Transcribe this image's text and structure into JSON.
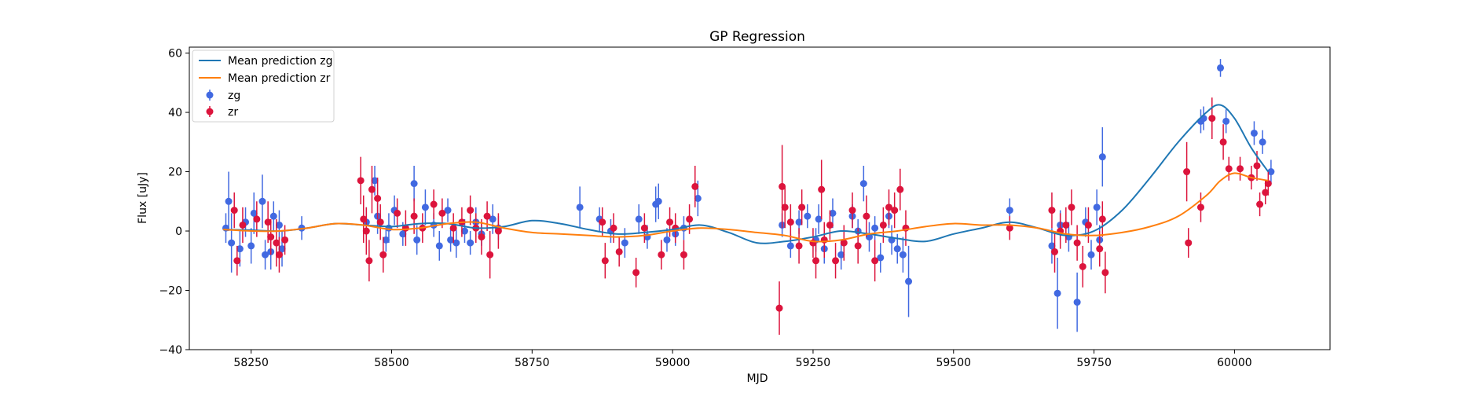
{
  "chart_data": {
    "type": "scatter",
    "title": "GP Regression",
    "xlabel": "MJD",
    "ylabel": "Flux [uJy]",
    "xlim": [
      58140,
      60170
    ],
    "ylim": [
      -40,
      62
    ],
    "xticks": [
      58250,
      58500,
      58750,
      59000,
      59250,
      59500,
      59750,
      60000
    ],
    "yticks": [
      -40,
      -20,
      0,
      20,
      40,
      60
    ],
    "legend_position": "top-left",
    "grid": false,
    "series": [
      {
        "name": "Mean prediction zg",
        "kind": "line",
        "color": "#1f77b4",
        "x": [
          58200,
          58250,
          58300,
          58350,
          58400,
          58450,
          58500,
          58550,
          58600,
          58650,
          58700,
          58750,
          58800,
          58850,
          58900,
          58950,
          59000,
          59050,
          59100,
          59150,
          59200,
          59250,
          59300,
          59350,
          59400,
          59450,
          59500,
          59550,
          59600,
          59650,
          59700,
          59750,
          59800,
          59850,
          59900,
          59950,
          59975,
          60000,
          60030,
          60060
        ],
        "y": [
          0.5,
          0.3,
          0.0,
          1.0,
          2.5,
          2.0,
          1.5,
          2.5,
          2.5,
          1.0,
          1.5,
          3.5,
          2.5,
          0.5,
          -1.0,
          -0.5,
          0.5,
          2.0,
          -0.5,
          -4.0,
          -3.5,
          -2.0,
          0.0,
          -1.0,
          -2.5,
          -3.5,
          -1.0,
          1.0,
          3.0,
          1.0,
          -1.5,
          0.0,
          7.0,
          18.0,
          30.0,
          40.0,
          42.5,
          38.0,
          28.0,
          20.0
        ]
      },
      {
        "name": "Mean prediction zr",
        "kind": "line",
        "color": "#ff7f0e",
        "x": [
          58200,
          58250,
          58300,
          58350,
          58400,
          58450,
          58500,
          58550,
          58600,
          58650,
          58700,
          58750,
          58800,
          58850,
          58900,
          58950,
          59000,
          59050,
          59100,
          59150,
          59200,
          59250,
          59300,
          59350,
          59400,
          59450,
          59500,
          59550,
          59600,
          59650,
          59700,
          59750,
          59800,
          59850,
          59900,
          59950,
          59975,
          60000,
          60030,
          60060
        ],
        "y": [
          0.5,
          0.0,
          0.0,
          1.0,
          2.5,
          2.0,
          0.5,
          1.0,
          2.5,
          3.0,
          1.0,
          -0.5,
          -1.0,
          -1.5,
          -2.0,
          -1.5,
          0.0,
          1.0,
          0.5,
          -0.5,
          -1.5,
          -3.5,
          -3.0,
          -1.0,
          0.0,
          1.5,
          2.5,
          2.0,
          2.0,
          1.0,
          -1.0,
          -1.5,
          -0.5,
          1.5,
          5.0,
          12.0,
          17.0,
          19.5,
          18.0,
          17.0
        ]
      },
      {
        "name": "zg",
        "kind": "errorbar",
        "color": "#4169e1",
        "points": [
          [
            58205,
            1,
            5
          ],
          [
            58210,
            10,
            10
          ],
          [
            58215,
            -4,
            10
          ],
          [
            58230,
            -6,
            6
          ],
          [
            58240,
            3,
            5
          ],
          [
            58250,
            -5,
            6
          ],
          [
            58255,
            6,
            7
          ],
          [
            58270,
            10,
            9
          ],
          [
            58275,
            -8,
            5
          ],
          [
            58285,
            -7,
            6
          ],
          [
            58290,
            5,
            5
          ],
          [
            58300,
            2,
            5
          ],
          [
            58305,
            -6,
            6
          ],
          [
            58340,
            1,
            4
          ],
          [
            58455,
            3,
            5
          ],
          [
            58470,
            17,
            5
          ],
          [
            58475,
            5,
            6
          ],
          [
            58490,
            -3,
            4
          ],
          [
            58495,
            1,
            5
          ],
          [
            58505,
            7,
            5
          ],
          [
            58520,
            -1,
            4
          ],
          [
            58540,
            16,
            6
          ],
          [
            58545,
            -3,
            5
          ],
          [
            58560,
            8,
            6
          ],
          [
            58575,
            2,
            4
          ],
          [
            58585,
            -5,
            5
          ],
          [
            58600,
            7,
            4
          ],
          [
            58605,
            -3,
            4
          ],
          [
            58615,
            -4,
            5
          ],
          [
            58630,
            0,
            4
          ],
          [
            58640,
            -4,
            4
          ],
          [
            58650,
            3,
            5
          ],
          [
            58660,
            -1,
            4
          ],
          [
            58680,
            4,
            5
          ],
          [
            58690,
            1,
            4
          ],
          [
            58835,
            8,
            7
          ],
          [
            58870,
            4,
            4
          ],
          [
            58890,
            0,
            4
          ],
          [
            58915,
            -4,
            5
          ],
          [
            58940,
            4,
            5
          ],
          [
            58955,
            -2,
            4
          ],
          [
            58970,
            9,
            6
          ],
          [
            58975,
            10,
            6
          ],
          [
            58990,
            -3,
            4
          ],
          [
            59005,
            -1,
            4
          ],
          [
            59020,
            1,
            4
          ],
          [
            59045,
            11,
            6
          ],
          [
            59195,
            2,
            4
          ],
          [
            59210,
            -5,
            4
          ],
          [
            59225,
            3,
            4
          ],
          [
            59240,
            5,
            4
          ],
          [
            59255,
            -3,
            4
          ],
          [
            59260,
            4,
            5
          ],
          [
            59270,
            -6,
            5
          ],
          [
            59285,
            6,
            5
          ],
          [
            59300,
            -8,
            5
          ],
          [
            59320,
            5,
            4
          ],
          [
            59330,
            0,
            4
          ],
          [
            59340,
            16,
            6
          ],
          [
            59350,
            -2,
            5
          ],
          [
            59360,
            1,
            4
          ],
          [
            59370,
            -9,
            5
          ],
          [
            59385,
            5,
            4
          ],
          [
            59390,
            -3,
            5
          ],
          [
            59400,
            -6,
            5
          ],
          [
            59410,
            -8,
            6
          ],
          [
            59420,
            -17,
            12
          ],
          [
            59600,
            7,
            4
          ],
          [
            59675,
            -5,
            6
          ],
          [
            59685,
            -21,
            12
          ],
          [
            59690,
            2,
            5
          ],
          [
            59705,
            -2,
            5
          ],
          [
            59720,
            -24,
            10
          ],
          [
            59735,
            3,
            5
          ],
          [
            59745,
            -8,
            5
          ],
          [
            59755,
            8,
            6
          ],
          [
            59760,
            -3,
            5
          ],
          [
            59765,
            25,
            10
          ],
          [
            59940,
            37,
            4
          ],
          [
            59945,
            38,
            4
          ],
          [
            59975,
            55,
            3
          ],
          [
            59985,
            37,
            4
          ],
          [
            60035,
            33,
            4
          ],
          [
            60050,
            30,
            4
          ],
          [
            60065,
            20,
            4
          ]
        ]
      },
      {
        "name": "zr",
        "kind": "errorbar",
        "color": "#dc143c",
        "points": [
          [
            58220,
            7,
            6
          ],
          [
            58225,
            -10,
            5
          ],
          [
            58235,
            2,
            6
          ],
          [
            58260,
            4,
            6
          ],
          [
            58280,
            3,
            7
          ],
          [
            58285,
            -2,
            6
          ],
          [
            58295,
            -4,
            8
          ],
          [
            58300,
            -8,
            6
          ],
          [
            58310,
            -3,
            5
          ],
          [
            58445,
            17,
            8
          ],
          [
            58450,
            4,
            8
          ],
          [
            58455,
            0,
            8
          ],
          [
            58460,
            -10,
            7
          ],
          [
            58465,
            14,
            8
          ],
          [
            58475,
            11,
            7
          ],
          [
            58480,
            3,
            6
          ],
          [
            58485,
            -8,
            6
          ],
          [
            58510,
            6,
            5
          ],
          [
            58525,
            1,
            6
          ],
          [
            58540,
            5,
            6
          ],
          [
            58555,
            1,
            5
          ],
          [
            58575,
            9,
            5
          ],
          [
            58590,
            6,
            5
          ],
          [
            58610,
            1,
            5
          ],
          [
            58625,
            3,
            5
          ],
          [
            58640,
            7,
            5
          ],
          [
            58650,
            1,
            5
          ],
          [
            58660,
            -2,
            6
          ],
          [
            58670,
            5,
            5
          ],
          [
            58675,
            -8,
            8
          ],
          [
            58690,
            0,
            6
          ],
          [
            58875,
            3,
            5
          ],
          [
            58880,
            -10,
            6
          ],
          [
            58895,
            1,
            5
          ],
          [
            58905,
            -7,
            5
          ],
          [
            58935,
            -14,
            5
          ],
          [
            58950,
            1,
            5
          ],
          [
            58980,
            -8,
            5
          ],
          [
            58995,
            3,
            5
          ],
          [
            59005,
            1,
            5
          ],
          [
            59020,
            -8,
            5
          ],
          [
            59030,
            4,
            5
          ],
          [
            59040,
            15,
            7
          ],
          [
            59190,
            -26,
            9
          ],
          [
            59195,
            15,
            14
          ],
          [
            59200,
            8,
            7
          ],
          [
            59210,
            3,
            6
          ],
          [
            59225,
            -5,
            6
          ],
          [
            59230,
            8,
            6
          ],
          [
            59250,
            -4,
            5
          ],
          [
            59255,
            -10,
            6
          ],
          [
            59265,
            14,
            10
          ],
          [
            59270,
            -3,
            6
          ],
          [
            59280,
            2,
            5
          ],
          [
            59290,
            -10,
            6
          ],
          [
            59305,
            -4,
            6
          ],
          [
            59320,
            7,
            6
          ],
          [
            59330,
            -5,
            6
          ],
          [
            59345,
            5,
            7
          ],
          [
            59360,
            -10,
            7
          ],
          [
            59375,
            2,
            6
          ],
          [
            59385,
            8,
            6
          ],
          [
            59395,
            7,
            6
          ],
          [
            59405,
            14,
            7
          ],
          [
            59415,
            1,
            6
          ],
          [
            59600,
            1,
            4
          ],
          [
            59675,
            7,
            6
          ],
          [
            59680,
            -7,
            7
          ],
          [
            59690,
            0,
            6
          ],
          [
            59700,
            2,
            6
          ],
          [
            59710,
            8,
            6
          ],
          [
            59720,
            -4,
            6
          ],
          [
            59730,
            -12,
            7
          ],
          [
            59740,
            2,
            6
          ],
          [
            59760,
            -6,
            6
          ],
          [
            59765,
            4,
            6
          ],
          [
            59770,
            -14,
            7
          ],
          [
            59915,
            20,
            10
          ],
          [
            59918,
            -4,
            5
          ],
          [
            59940,
            8,
            5
          ],
          [
            59960,
            38,
            7
          ],
          [
            59980,
            30,
            6
          ],
          [
            59990,
            21,
            4
          ],
          [
            60010,
            21,
            4
          ],
          [
            60030,
            18,
            4
          ],
          [
            60040,
            22,
            5
          ],
          [
            60045,
            9,
            4
          ],
          [
            60055,
            13,
            4
          ],
          [
            60060,
            16,
            4
          ]
        ]
      }
    ]
  }
}
